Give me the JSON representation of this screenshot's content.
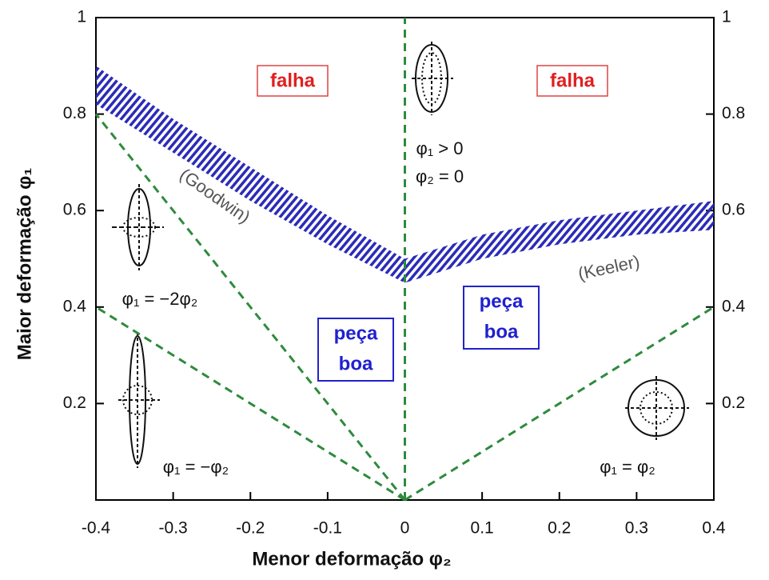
{
  "chart_data": {
    "type": "line",
    "xlabel": "Menor deformação φ₂",
    "ylabel": "Maior deformação φ₁",
    "xlim": [
      -0.4,
      0.4
    ],
    "ylim": [
      0,
      1
    ],
    "xticks": [
      -0.4,
      -0.3,
      -0.2,
      -0.1,
      0,
      0.1,
      0.2,
      0.3,
      0.4
    ],
    "yticks": [
      0.2,
      0.4,
      0.6,
      0.8,
      1
    ],
    "y2ticks": [
      0.2,
      0.4,
      0.6,
      0.8,
      1
    ],
    "series": [
      {
        "color": "#2e8b3e",
        "x": [
          0,
          -0.4
        ],
        "values": [
          0,
          0.8
        ]
      },
      {
        "color": "#2e8b3e",
        "x": [
          0,
          -0.4
        ],
        "values": [
          0,
          0.4
        ]
      },
      {
        "color": "#2e8b3e",
        "x": [
          0,
          0.4
        ],
        "values": [
          0,
          0.4
        ]
      },
      {
        "color": "#2e8b3e",
        "x": [
          0,
          0
        ],
        "values": [
          0,
          1
        ]
      }
    ],
    "bands": [
      {
        "color": "#2b2bb8",
        "x": [
          -0.4,
          -0.3,
          -0.2,
          -0.1,
          0
        ],
        "upper": [
          0.9,
          0.79,
          0.69,
          0.59,
          0.5
        ],
        "lower": [
          0.82,
          0.72,
          0.62,
          0.53,
          0.45
        ]
      },
      {
        "color": "#2b2bb8",
        "x": [
          0,
          0.1,
          0.2,
          0.3,
          0.4
        ],
        "upper": [
          0.5,
          0.55,
          0.58,
          0.6,
          0.62
        ],
        "lower": [
          0.45,
          0.5,
          0.53,
          0.55,
          0.56
        ]
      }
    ],
    "annotations": [
      "falha",
      "falha",
      "peça",
      "boa",
      "peça",
      "boa",
      "(Goodwin)",
      "(Keeler)",
      "φ₁ > 0",
      "φ₂ = 0",
      "φ₁ = −2φ₂",
      "φ₁ = −φ₂",
      "φ₁ = φ₂"
    ]
  }
}
